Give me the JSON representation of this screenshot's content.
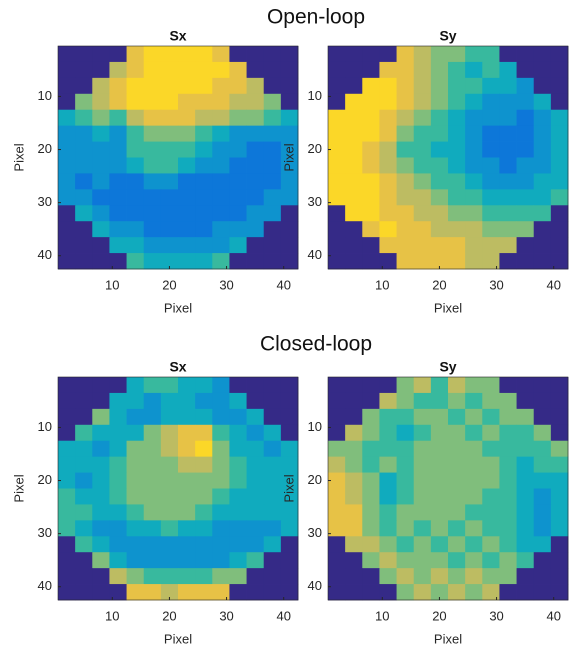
{
  "sections": [
    "Open-loop",
    "Closed-loop"
  ],
  "chart_data": [
    {
      "type": "heatmap",
      "title": "Sx",
      "xlabel": "Pixel",
      "ylabel": "Pixel",
      "colormap": "parula",
      "clim": [
        0,
        1
      ],
      "y_reversed": true,
      "xlim": [
        0.5,
        42.5
      ],
      "ylim": [
        0.5,
        42.5
      ],
      "xticks": [
        10,
        20,
        30,
        40
      ],
      "yticks": [
        10,
        20,
        30,
        40
      ],
      "x": [
        2,
        5,
        8,
        11,
        14,
        17,
        20,
        23,
        26,
        29,
        32,
        35,
        38,
        41
      ],
      "y": [
        2,
        5,
        8,
        11,
        14,
        17,
        20,
        23,
        26,
        29,
        32,
        35,
        38,
        41
      ],
      "z": [
        [
          0,
          0,
          0,
          0,
          0.8,
          0.9,
          0.9,
          0.9,
          0.9,
          0.8,
          0,
          0,
          0,
          0
        ],
        [
          0,
          0,
          0,
          0.7,
          0.8,
          0.9,
          0.9,
          0.9,
          0.9,
          0.9,
          0.8,
          0,
          0,
          0
        ],
        [
          0,
          0,
          0.7,
          0.8,
          0.9,
          0.9,
          0.9,
          0.9,
          0.9,
          0.8,
          0.8,
          0.7,
          0,
          0
        ],
        [
          0,
          0.6,
          0.7,
          0.8,
          0.9,
          0.9,
          0.9,
          0.8,
          0.8,
          0.8,
          0.7,
          0.7,
          0.6,
          0
        ],
        [
          0.4,
          0.5,
          0.6,
          0.5,
          0.7,
          0.8,
          0.8,
          0.8,
          0.7,
          0.7,
          0.6,
          0.6,
          0.5,
          0.4
        ],
        [
          0.3,
          0.3,
          0.4,
          0.3,
          0.5,
          0.6,
          0.6,
          0.6,
          0.5,
          0.4,
          0.3,
          0.3,
          0.3,
          0.3
        ],
        [
          0.3,
          0.3,
          0.3,
          0.3,
          0.5,
          0.5,
          0.5,
          0.5,
          0.4,
          0.3,
          0.3,
          0.2,
          0.2,
          0.3
        ],
        [
          0.3,
          0.3,
          0.3,
          0.3,
          0.4,
          0.5,
          0.5,
          0.4,
          0.3,
          0.3,
          0.2,
          0.2,
          0.2,
          0.3
        ],
        [
          0.3,
          0.2,
          0.3,
          0.2,
          0.2,
          0.3,
          0.3,
          0.2,
          0.2,
          0.2,
          0.2,
          0.2,
          0.2,
          0.3
        ],
        [
          0.3,
          0.3,
          0.2,
          0.2,
          0.2,
          0.2,
          0.2,
          0.2,
          0.2,
          0.2,
          0.2,
          0.2,
          0.3,
          0.3
        ],
        [
          0,
          0.4,
          0.3,
          0.2,
          0.2,
          0.2,
          0.2,
          0.2,
          0.2,
          0.2,
          0.2,
          0.3,
          0.3,
          0
        ],
        [
          0,
          0,
          0.4,
          0.3,
          0.3,
          0.2,
          0.2,
          0.2,
          0.2,
          0.3,
          0.3,
          0.3,
          0,
          0
        ],
        [
          0,
          0,
          0,
          0.4,
          0.4,
          0.3,
          0.3,
          0.3,
          0.3,
          0.3,
          0.4,
          0,
          0,
          0
        ],
        [
          0,
          0,
          0,
          0,
          0.5,
          0.4,
          0.4,
          0.4,
          0.4,
          0.5,
          0,
          0,
          0,
          0
        ]
      ]
    },
    {
      "type": "heatmap",
      "title": "Sy",
      "xlabel": "Pixel",
      "ylabel": "Pixel",
      "colormap": "parula",
      "clim": [
        0,
        1
      ],
      "y_reversed": true,
      "xlim": [
        0.5,
        42.5
      ],
      "ylim": [
        0.5,
        42.5
      ],
      "xticks": [
        10,
        20,
        30,
        40
      ],
      "yticks": [
        10,
        20,
        30,
        40
      ],
      "x": [
        2,
        5,
        8,
        11,
        14,
        17,
        20,
        23,
        26,
        29,
        32,
        35,
        38,
        41
      ],
      "y": [
        2,
        5,
        8,
        11,
        14,
        17,
        20,
        23,
        26,
        29,
        32,
        35,
        38,
        41
      ],
      "z": [
        [
          0,
          0,
          0,
          0,
          0.8,
          0.7,
          0.6,
          0.6,
          0.5,
          0.5,
          0,
          0,
          0,
          0
        ],
        [
          0,
          0,
          0,
          0.8,
          0.8,
          0.7,
          0.6,
          0.5,
          0.4,
          0.5,
          0.4,
          0,
          0,
          0
        ],
        [
          0,
          0,
          0.9,
          0.9,
          0.8,
          0.7,
          0.6,
          0.5,
          0.5,
          0.4,
          0.4,
          0.3,
          0,
          0
        ],
        [
          0,
          0.9,
          0.9,
          0.9,
          0.8,
          0.7,
          0.6,
          0.5,
          0.4,
          0.3,
          0.3,
          0.3,
          0.4,
          0
        ],
        [
          0.9,
          0.9,
          0.9,
          0.8,
          0.7,
          0.6,
          0.5,
          0.4,
          0.3,
          0.3,
          0.3,
          0.2,
          0.3,
          0.4
        ],
        [
          0.9,
          0.9,
          0.9,
          0.8,
          0.6,
          0.5,
          0.5,
          0.4,
          0.3,
          0.2,
          0.2,
          0.2,
          0.3,
          0.4
        ],
        [
          0.9,
          0.9,
          0.8,
          0.7,
          0.5,
          0.5,
          0.4,
          0.4,
          0.3,
          0.2,
          0.2,
          0.2,
          0.3,
          0.4
        ],
        [
          0.9,
          0.9,
          0.8,
          0.7,
          0.6,
          0.5,
          0.5,
          0.4,
          0.3,
          0.3,
          0.2,
          0.3,
          0.3,
          0.4
        ],
        [
          0.9,
          0.9,
          0.9,
          0.8,
          0.7,
          0.6,
          0.5,
          0.5,
          0.4,
          0.3,
          0.3,
          0.3,
          0.4,
          0.4
        ],
        [
          0.9,
          0.9,
          0.9,
          0.8,
          0.7,
          0.7,
          0.6,
          0.5,
          0.5,
          0.4,
          0.4,
          0.4,
          0.4,
          0.5
        ],
        [
          0,
          0.9,
          0.9,
          0.8,
          0.8,
          0.7,
          0.7,
          0.6,
          0.6,
          0.5,
          0.5,
          0.5,
          0.5,
          0
        ],
        [
          0,
          0,
          0.8,
          0.9,
          0.8,
          0.8,
          0.7,
          0.7,
          0.7,
          0.6,
          0.6,
          0.6,
          0,
          0
        ],
        [
          0,
          0,
          0,
          0.8,
          0.8,
          0.8,
          0.8,
          0.8,
          0.7,
          0.7,
          0.7,
          0,
          0,
          0
        ],
        [
          0,
          0,
          0,
          0,
          0.8,
          0.8,
          0.8,
          0.8,
          0.7,
          0.7,
          0,
          0,
          0,
          0
        ]
      ]
    },
    {
      "type": "heatmap",
      "title": "Sx",
      "xlabel": "Pixel",
      "ylabel": "Pixel",
      "colormap": "parula",
      "clim": [
        0,
        1
      ],
      "y_reversed": true,
      "xlim": [
        0.5,
        42.5
      ],
      "ylim": [
        0.5,
        42.5
      ],
      "xticks": [
        10,
        20,
        30,
        40
      ],
      "yticks": [
        10,
        20,
        30,
        40
      ],
      "x": [
        2,
        5,
        8,
        11,
        14,
        17,
        20,
        23,
        26,
        29,
        32,
        35,
        38,
        41
      ],
      "y": [
        2,
        5,
        8,
        11,
        14,
        17,
        20,
        23,
        26,
        29,
        32,
        35,
        38,
        41
      ],
      "z": [
        [
          0,
          0,
          0,
          0,
          0.4,
          0.5,
          0.5,
          0.4,
          0.4,
          0.3,
          0,
          0,
          0,
          0
        ],
        [
          0,
          0,
          0,
          0.4,
          0.4,
          0.3,
          0.4,
          0.4,
          0.3,
          0.3,
          0.4,
          0,
          0,
          0
        ],
        [
          0,
          0,
          0.6,
          0.4,
          0.3,
          0.3,
          0.4,
          0.4,
          0.4,
          0.3,
          0.3,
          0.4,
          0,
          0
        ],
        [
          0,
          0.5,
          0.4,
          0.4,
          0.4,
          0.6,
          0.7,
          0.8,
          0.8,
          0.5,
          0.4,
          0.3,
          0.4,
          0
        ],
        [
          0.4,
          0.4,
          0.3,
          0.4,
          0.6,
          0.6,
          0.7,
          0.8,
          0.9,
          0.6,
          0.4,
          0.4,
          0.3,
          0.4
        ],
        [
          0.4,
          0.4,
          0.4,
          0.5,
          0.6,
          0.6,
          0.6,
          0.7,
          0.7,
          0.6,
          0.5,
          0.4,
          0.4,
          0.4
        ],
        [
          0.4,
          0.3,
          0.4,
          0.5,
          0.6,
          0.6,
          0.6,
          0.6,
          0.6,
          0.6,
          0.5,
          0.4,
          0.4,
          0.4
        ],
        [
          0.5,
          0.4,
          0.4,
          0.5,
          0.6,
          0.6,
          0.6,
          0.6,
          0.6,
          0.5,
          0.4,
          0.4,
          0.4,
          0.4
        ],
        [
          0.5,
          0.5,
          0.4,
          0.4,
          0.5,
          0.6,
          0.6,
          0.6,
          0.5,
          0.4,
          0.4,
          0.4,
          0.4,
          0.4
        ],
        [
          0.5,
          0.4,
          0.3,
          0.3,
          0.4,
          0.4,
          0.5,
          0.4,
          0.4,
          0.3,
          0.3,
          0.3,
          0.3,
          0.4
        ],
        [
          0,
          0.5,
          0.4,
          0.3,
          0.3,
          0.3,
          0.3,
          0.3,
          0.3,
          0.3,
          0.3,
          0.3,
          0.4,
          0
        ],
        [
          0,
          0,
          0.6,
          0.4,
          0.3,
          0.3,
          0.3,
          0.3,
          0.3,
          0.3,
          0.4,
          0.5,
          0,
          0
        ],
        [
          0,
          0,
          0,
          0.7,
          0.6,
          0.5,
          0.5,
          0.5,
          0.5,
          0.6,
          0.6,
          0,
          0,
          0
        ],
        [
          0,
          0,
          0,
          0,
          0.8,
          0.8,
          0.7,
          0.8,
          0.8,
          0.8,
          0,
          0,
          0,
          0
        ]
      ]
    },
    {
      "type": "heatmap",
      "title": "Sy",
      "xlabel": "Pixel",
      "ylabel": "Pixel",
      "colormap": "parula",
      "clim": [
        0,
        1
      ],
      "y_reversed": true,
      "xlim": [
        0.5,
        42.5
      ],
      "ylim": [
        0.5,
        42.5
      ],
      "xticks": [
        10,
        20,
        30,
        40
      ],
      "yticks": [
        10,
        20,
        30,
        40
      ],
      "x": [
        2,
        5,
        8,
        11,
        14,
        17,
        20,
        23,
        26,
        29,
        32,
        35,
        38,
        41
      ],
      "y": [
        2,
        5,
        8,
        11,
        14,
        17,
        20,
        23,
        26,
        29,
        32,
        35,
        38,
        41
      ],
      "z": [
        [
          0,
          0,
          0,
          0,
          0.6,
          0.7,
          0.5,
          0.7,
          0.6,
          0.6,
          0,
          0,
          0,
          0
        ],
        [
          0,
          0,
          0,
          0.7,
          0.6,
          0.5,
          0.5,
          0.6,
          0.5,
          0.6,
          0.6,
          0,
          0,
          0
        ],
        [
          0,
          0,
          0.6,
          0.5,
          0.5,
          0.6,
          0.6,
          0.5,
          0.6,
          0.5,
          0.6,
          0.6,
          0,
          0
        ],
        [
          0,
          0.7,
          0.6,
          0.5,
          0.4,
          0.5,
          0.6,
          0.6,
          0.5,
          0.6,
          0.5,
          0.5,
          0.6,
          0
        ],
        [
          0.6,
          0.6,
          0.5,
          0.5,
          0.5,
          0.6,
          0.6,
          0.6,
          0.6,
          0.5,
          0.5,
          0.5,
          0.5,
          0.6
        ],
        [
          0.7,
          0.6,
          0.5,
          0.6,
          0.5,
          0.6,
          0.6,
          0.6,
          0.6,
          0.6,
          0.5,
          0.4,
          0.5,
          0.5
        ],
        [
          0.8,
          0.7,
          0.6,
          0.4,
          0.5,
          0.6,
          0.6,
          0.6,
          0.6,
          0.6,
          0.5,
          0.4,
          0.4,
          0.4
        ],
        [
          0.8,
          0.7,
          0.6,
          0.4,
          0.5,
          0.6,
          0.6,
          0.6,
          0.6,
          0.5,
          0.5,
          0.4,
          0.3,
          0.4
        ],
        [
          0.8,
          0.8,
          0.6,
          0.5,
          0.6,
          0.6,
          0.6,
          0.6,
          0.5,
          0.5,
          0.5,
          0.4,
          0.3,
          0.4
        ],
        [
          0.8,
          0.8,
          0.6,
          0.5,
          0.6,
          0.5,
          0.6,
          0.5,
          0.6,
          0.5,
          0.5,
          0.4,
          0.3,
          0.4
        ],
        [
          0,
          0.7,
          0.7,
          0.6,
          0.5,
          0.6,
          0.5,
          0.6,
          0.5,
          0.6,
          0.5,
          0.4,
          0.4,
          0
        ],
        [
          0,
          0,
          0.6,
          0.7,
          0.6,
          0.6,
          0.6,
          0.5,
          0.6,
          0.5,
          0.6,
          0.5,
          0,
          0
        ],
        [
          0,
          0,
          0,
          0.6,
          0.7,
          0.6,
          0.7,
          0.6,
          0.7,
          0.6,
          0.6,
          0,
          0,
          0
        ],
        [
          0,
          0,
          0,
          0,
          0.6,
          0.7,
          0.6,
          0.7,
          0.6,
          0.7,
          0,
          0,
          0,
          0
        ]
      ]
    }
  ]
}
